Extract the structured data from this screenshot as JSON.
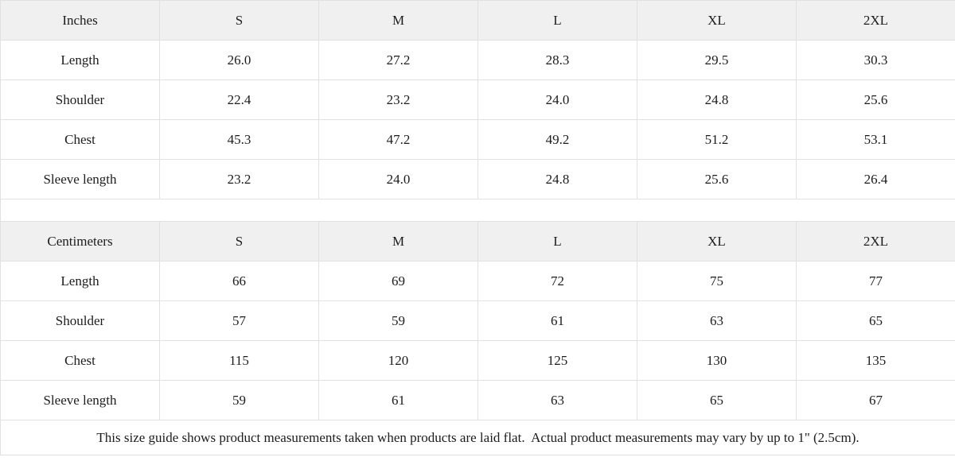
{
  "colors": {
    "page-bg": "#ffffff",
    "cell-bg": "#ffffff",
    "head-bg": "#f0f0f0",
    "border": "#e1e1e1",
    "text": "#1c1c1c"
  },
  "inches": {
    "unit_label": "Inches",
    "sizes": [
      "S",
      "M",
      "L",
      "XL",
      "2XL"
    ],
    "rows": [
      {
        "label": "Length",
        "values": [
          "26.0",
          "27.2",
          "28.3",
          "29.5",
          "30.3"
        ]
      },
      {
        "label": "Shoulder",
        "values": [
          "22.4",
          "23.2",
          "24.0",
          "24.8",
          "25.6"
        ]
      },
      {
        "label": "Chest",
        "values": [
          "45.3",
          "47.2",
          "49.2",
          "51.2",
          "53.1"
        ]
      },
      {
        "label": "Sleeve length",
        "values": [
          "23.2",
          "24.0",
          "24.8",
          "25.6",
          "26.4"
        ]
      }
    ]
  },
  "centimeters": {
    "unit_label": "Centimeters",
    "sizes": [
      "S",
      "M",
      "L",
      "XL",
      "2XL"
    ],
    "rows": [
      {
        "label": "Length",
        "values": [
          "66",
          "69",
          "72",
          "75",
          "77"
        ]
      },
      {
        "label": "Shoulder",
        "values": [
          "57",
          "59",
          "61",
          "63",
          "65"
        ]
      },
      {
        "label": "Chest",
        "values": [
          "115",
          "120",
          "125",
          "130",
          "135"
        ]
      },
      {
        "label": "Sleeve length",
        "values": [
          "59",
          "61",
          "63",
          "65",
          "67"
        ]
      }
    ]
  },
  "footer": {
    "note": "This size guide shows product measurements taken when products are laid flat.  Actual product measurements may vary by up to 1\" (2.5cm)."
  }
}
